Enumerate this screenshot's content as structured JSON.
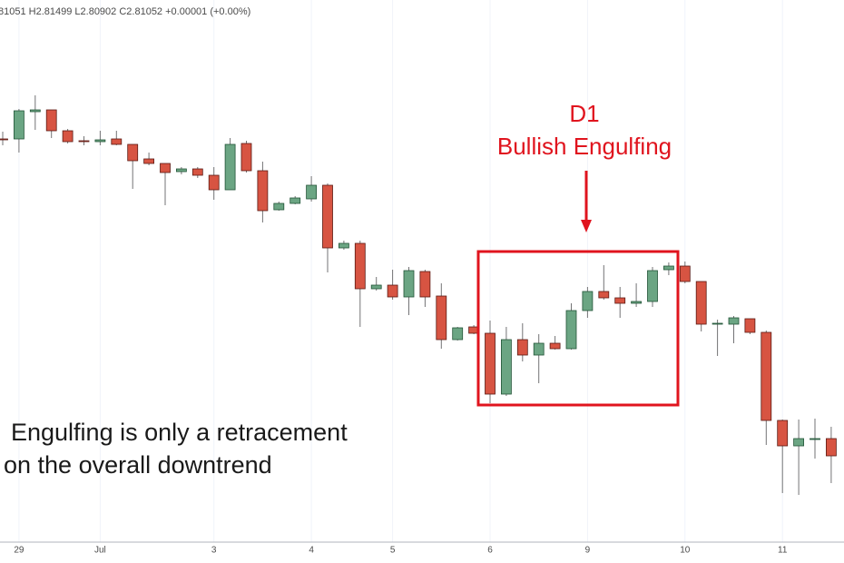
{
  "chart_data": {
    "type": "candlestick",
    "header": "81051 H2.81499 L2.80902 C2.81052 +0.00001 (+0.00%)",
    "annotation_title": "D1",
    "annotation_subtitle": "Bullish Engulfing",
    "note_lines": [
      "Engulfing is only a retracement",
      "on the overall downtrend"
    ],
    "up_color": "#6ba583",
    "down_color": "#d75442",
    "ylim": [
      2.78,
      2.899
    ],
    "categories": [
      null,
      "29",
      null,
      null,
      null,
      null,
      "Jul",
      null,
      null,
      null,
      null,
      null,
      null,
      "3",
      null,
      null,
      null,
      null,
      null,
      "4",
      null,
      null,
      null,
      null,
      "5",
      null,
      null,
      null,
      null,
      null,
      "6",
      null,
      null,
      null,
      null,
      null,
      "9",
      null,
      null,
      null,
      null,
      null,
      "10",
      null,
      null,
      null,
      null,
      null,
      "11",
      null,
      null,
      null
    ],
    "open": [
      2.8684,
      2.8684,
      2.8744,
      2.8748,
      2.8702,
      2.868,
      2.8678,
      2.8684,
      2.8672,
      2.864,
      2.863,
      2.8612,
      2.8618,
      2.8604,
      2.8572,
      2.8674,
      2.8614,
      2.8528,
      2.8542,
      2.8552,
      2.8582,
      2.8444,
      2.8454,
      2.8354,
      2.8362,
      2.8336,
      2.8392,
      2.8338,
      2.8242,
      2.827,
      2.8256,
      2.8122,
      2.8242,
      2.8208,
      2.8234,
      2.8222,
      2.8306,
      2.8348,
      2.8334,
      2.8322,
      2.8326,
      2.8396,
      2.8404,
      2.837,
      2.8276,
      2.8276,
      2.8288,
      2.8258,
      2.8064,
      2.8008,
      2.8022,
      2.8024
    ],
    "high": [
      2.87,
      2.875,
      2.878,
      2.8748,
      2.8706,
      2.869,
      2.8702,
      2.8702,
      2.8672,
      2.8654,
      2.863,
      2.8622,
      2.8622,
      2.8622,
      2.8686,
      2.868,
      2.8634,
      2.8546,
      2.8558,
      2.8602,
      2.8586,
      2.846,
      2.846,
      2.838,
      2.8396,
      2.8402,
      2.8396,
      2.8366,
      2.827,
      2.8274,
      2.8284,
      2.827,
      2.8278,
      2.8254,
      2.825,
      2.8322,
      2.8358,
      2.8406,
      2.8358,
      2.8366,
      2.8402,
      2.8412,
      2.8414,
      2.837,
      2.8286,
      2.8294,
      2.8288,
      2.8262,
      2.8066,
      2.8066,
      2.8068,
      2.805
    ],
    "low": [
      2.867,
      2.8654,
      2.8704,
      2.8686,
      2.8674,
      2.867,
      2.867,
      2.867,
      2.8574,
      2.8626,
      2.8538,
      2.8606,
      2.8598,
      2.855,
      2.8572,
      2.861,
      2.85,
      2.8526,
      2.854,
      2.8546,
      2.839,
      2.844,
      2.827,
      2.835,
      2.833,
      2.8296,
      2.8314,
      2.8222,
      2.824,
      2.8254,
      2.8102,
      2.8118,
      2.8194,
      2.8146,
      2.822,
      2.822,
      2.829,
      2.833,
      2.829,
      2.8314,
      2.8314,
      2.8384,
      2.8366,
      2.826,
      2.8206,
      2.8234,
      2.8254,
      2.801,
      2.7904,
      2.79,
      2.798,
      2.7926
    ],
    "close": [
      2.8682,
      2.8746,
      2.8748,
      2.8702,
      2.8678,
      2.8678,
      2.8682,
      2.8672,
      2.8636,
      2.863,
      2.861,
      2.8618,
      2.8604,
      2.8572,
      2.8672,
      2.8614,
      2.8526,
      2.8542,
      2.8554,
      2.8582,
      2.8444,
      2.8454,
      2.8354,
      2.8362,
      2.8336,
      2.8394,
      2.8336,
      2.8242,
      2.8268,
      2.8256,
      2.8122,
      2.8242,
      2.8208,
      2.8234,
      2.8222,
      2.8306,
      2.8348,
      2.8334,
      2.8322,
      2.8326,
      2.8394,
      2.8404,
      2.837,
      2.8276,
      2.8278,
      2.829,
      2.8258,
      2.8064,
      2.8008,
      2.8024,
      2.8024,
      2.7986
    ]
  }
}
